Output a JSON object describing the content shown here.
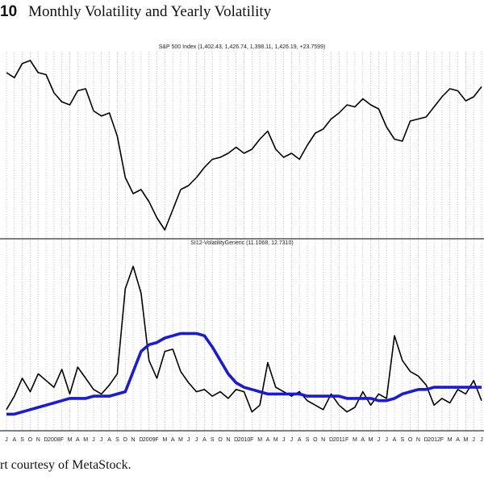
{
  "figure": {
    "number": "10",
    "title": "Monthly Volatility and Yearly Volatility",
    "caption": "rt courtesy of MetaStock."
  },
  "colors": {
    "price": "#000000",
    "monthly_vol": "#000000",
    "yearly_vol": "#1a1adb",
    "grid": "#9a9a9a",
    "frame": "#000000"
  },
  "chart_data": [
    {
      "type": "line",
      "header": "S&P 500 Index (1,402.43, 1,426.74, 1,398.11, 1,426.19, +23.7599)",
      "x_tick_labels": [
        "J",
        "A",
        "S",
        "O",
        "N",
        "D",
        "2008",
        "F",
        "M",
        "A",
        "M",
        "J",
        "J",
        "A",
        "S",
        "O",
        "N",
        "D",
        "2009",
        "F",
        "M",
        "A",
        "M",
        "J",
        "J",
        "A",
        "S",
        "O",
        "N",
        "D",
        "2010",
        "F",
        "M",
        "A",
        "M",
        "J",
        "J",
        "A",
        "S",
        "O",
        "N",
        "D",
        "2011",
        "F",
        "M",
        "A",
        "M",
        "J",
        "J",
        "A",
        "S",
        "O",
        "N",
        "D",
        "2012",
        "F",
        "M",
        "A",
        "M",
        "J",
        "J"
      ],
      "x": [
        0,
        1,
        2,
        3,
        4,
        5,
        6,
        7,
        8,
        9,
        10,
        11,
        12,
        13,
        14,
        15,
        16,
        17,
        18,
        19,
        20,
        21,
        22,
        23,
        24,
        25,
        26,
        27,
        28,
        29,
        30,
        31,
        32,
        33,
        34,
        35,
        36,
        37,
        38,
        39,
        40,
        41,
        42,
        43,
        44,
        45,
        46,
        47,
        48,
        49,
        50,
        51,
        52,
        53,
        54,
        55,
        56,
        57,
        58,
        59,
        60
      ],
      "series": [
        {
          "values": [
            1480,
            1455,
            1525,
            1540,
            1480,
            1470,
            1380,
            1335,
            1320,
            1390,
            1400,
            1290,
            1265,
            1280,
            1165,
            960,
            880,
            900,
            840,
            760,
            700,
            800,
            900,
            920,
            960,
            1010,
            1050,
            1060,
            1080,
            1110,
            1080,
            1100,
            1150,
            1190,
            1100,
            1060,
            1080,
            1050,
            1120,
            1180,
            1200,
            1250,
            1280,
            1320,
            1310,
            1350,
            1320,
            1300,
            1210,
            1150,
            1140,
            1240,
            1250,
            1260,
            1310,
            1360,
            1400,
            1390,
            1340,
            1360,
            1410
          ]
        }
      ],
      "grid": true
    },
    {
      "type": "line",
      "header": "SI12-VolatilityGeneric (11.1068, 12.7310)",
      "x_tick_labels": [
        "J",
        "A",
        "S",
        "O",
        "N",
        "D",
        "2008",
        "F",
        "M",
        "A",
        "M",
        "J",
        "J",
        "A",
        "S",
        "O",
        "N",
        "D",
        "2009",
        "F",
        "M",
        "A",
        "M",
        "J",
        "J",
        "A",
        "S",
        "O",
        "N",
        "D",
        "2010",
        "F",
        "M",
        "A",
        "M",
        "J",
        "J",
        "A",
        "S",
        "O",
        "N",
        "D",
        "2011",
        "F",
        "M",
        "A",
        "M",
        "J",
        "J",
        "A",
        "S",
        "O",
        "N",
        "D",
        "2012",
        "F",
        "M",
        "A",
        "M",
        "J",
        "J"
      ],
      "x": [
        0,
        1,
        2,
        3,
        4,
        5,
        6,
        7,
        8,
        9,
        10,
        11,
        12,
        13,
        14,
        15,
        16,
        17,
        18,
        19,
        20,
        21,
        22,
        23,
        24,
        25,
        26,
        27,
        28,
        29,
        30,
        31,
        32,
        33,
        34,
        35,
        36,
        37,
        38,
        39,
        40,
        41,
        42,
        43,
        44,
        45,
        46,
        47,
        48,
        49,
        50,
        51,
        52,
        53,
        54,
        55,
        56,
        57,
        58,
        59,
        60
      ],
      "series": [
        {
          "values": [
            8,
            14,
            22,
            16,
            24,
            21,
            18,
            26,
            15,
            27,
            22,
            17,
            15,
            19,
            24,
            62,
            72,
            60,
            30,
            22,
            34,
            35,
            25,
            20,
            16,
            17,
            14,
            16,
            13,
            17,
            16,
            7,
            10,
            29,
            18,
            16,
            14,
            16,
            12,
            10,
            8,
            15,
            10,
            7,
            9,
            16,
            10,
            15,
            13,
            41,
            30,
            25,
            23,
            19,
            10,
            13,
            11,
            17,
            15,
            21,
            12
          ]
        },
        {
          "values": [
            6,
            6,
            7,
            8,
            9,
            10,
            11,
            12,
            13,
            13,
            13,
            14,
            14,
            14,
            15,
            16,
            25,
            34,
            37,
            38,
            40,
            41,
            42,
            42,
            42,
            41,
            36,
            30,
            24,
            20,
            18,
            17,
            16,
            15,
            15,
            15,
            15,
            15,
            14,
            14,
            14,
            14,
            14,
            13,
            13,
            13,
            13,
            12,
            12,
            13,
            15,
            16,
            17,
            17,
            18,
            18,
            18,
            18,
            18,
            18,
            18
          ]
        }
      ],
      "grid": true
    }
  ]
}
